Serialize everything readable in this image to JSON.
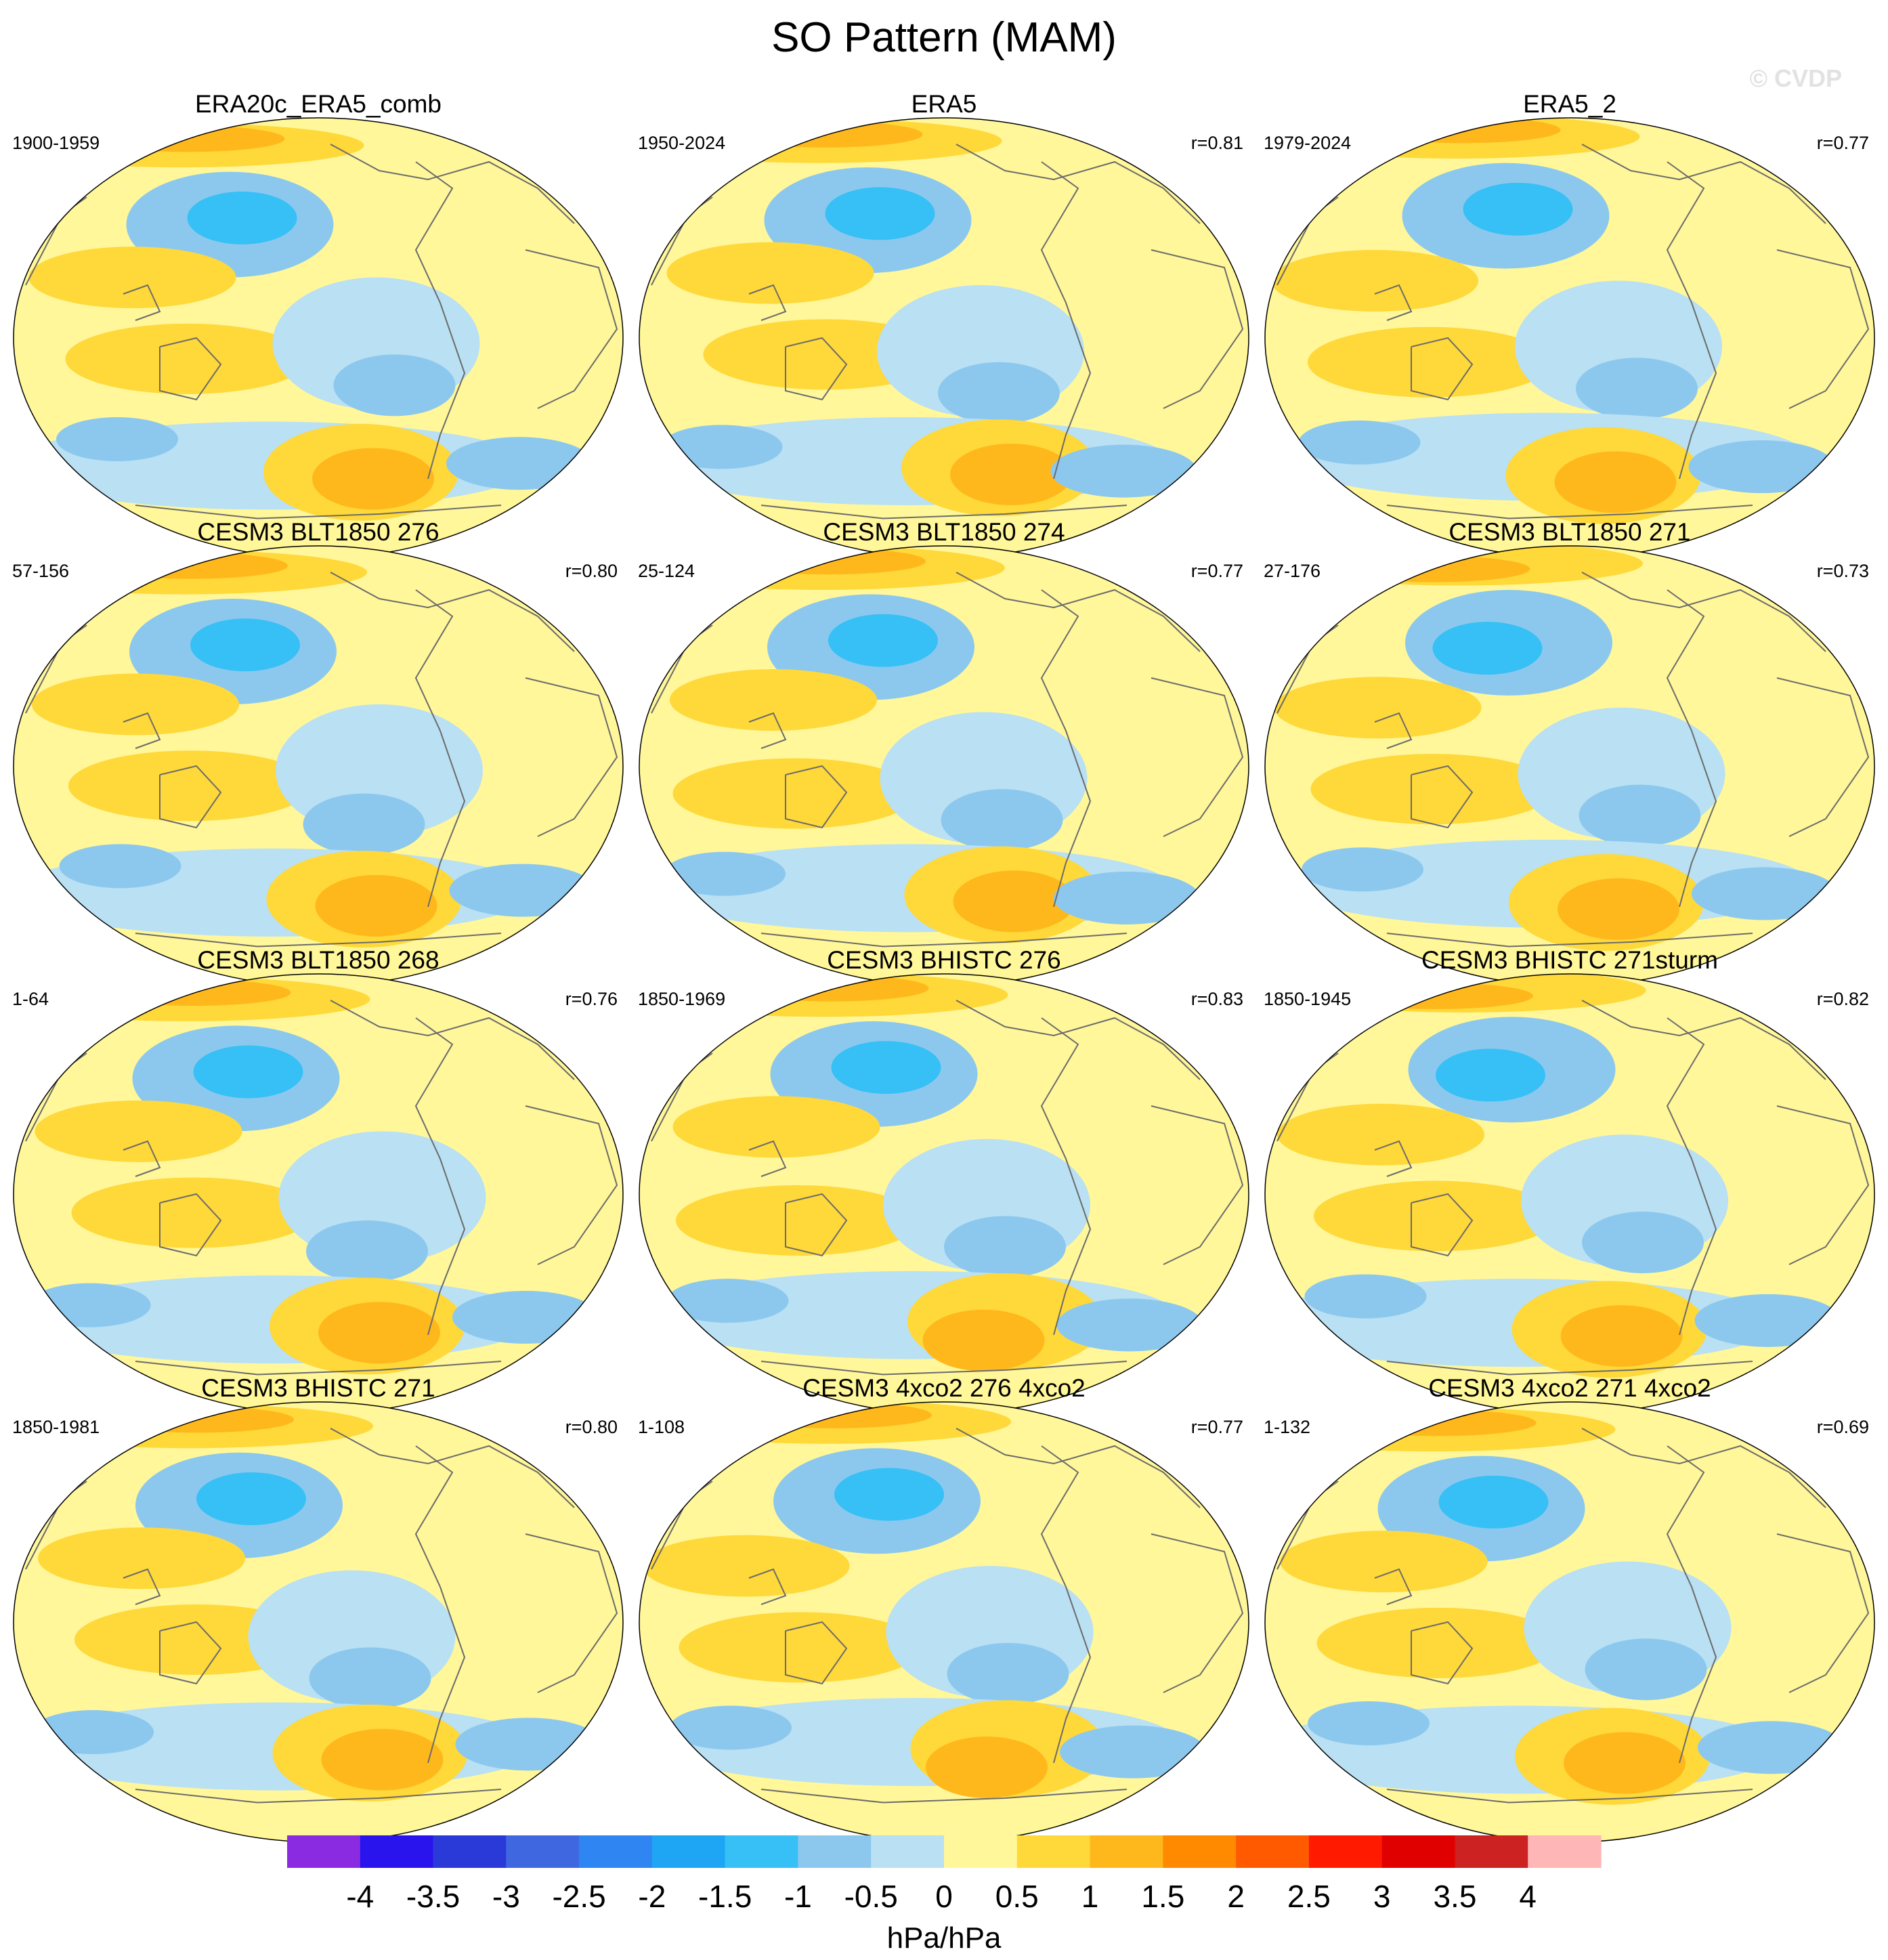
{
  "chart_data": {
    "type": "heatmap",
    "title": "SO Pattern (MAM)",
    "watermark": "© CVDP",
    "units": "hPa/hPa",
    "projection": "global map, Pacific-centered",
    "colorbar": {
      "ticks": [
        "-4",
        "-3.5",
        "-3",
        "-2.5",
        "-2",
        "-1.5",
        "-1",
        "-0.5",
        "0",
        "0.5",
        "1",
        "1.5",
        "2",
        "2.5",
        "3",
        "3.5",
        "4"
      ],
      "colors": [
        "#8a2be2",
        "#2a14ee",
        "#2a3ad9",
        "#3f68e0",
        "#2f86f2",
        "#1ea6f5",
        "#36c0f5",
        "#8cc8ee",
        "#b9e0f3",
        "#fff79a",
        "#ffd83a",
        "#ffb81c",
        "#ff8a00",
        "#ff5a00",
        "#ff1a00",
        "#e00000",
        "#cc2222",
        "#ffb6b6"
      ]
    },
    "panels": [
      {
        "title": "ERA20c_ERA5_comb",
        "period": "1900-1959",
        "r": ""
      },
      {
        "title": "ERA5",
        "period": "1950-2024",
        "r": "r=0.81"
      },
      {
        "title": "ERA5_2",
        "period": "1979-2024",
        "r": "r=0.77"
      },
      {
        "title": "CESM3 BLT1850 276",
        "period": "57-156",
        "r": "r=0.80"
      },
      {
        "title": "CESM3 BLT1850 274",
        "period": "25-124",
        "r": "r=0.77"
      },
      {
        "title": "CESM3 BLT1850 271",
        "period": "27-176",
        "r": "r=0.73"
      },
      {
        "title": "CESM3 BLT1850 268",
        "period": "1-64",
        "r": "r=0.76"
      },
      {
        "title": "CESM3 BHISTC 276",
        "period": "1850-1969",
        "r": "r=0.83"
      },
      {
        "title": "CESM3 BHISTC 271sturm",
        "period": "1850-1945",
        "r": "r=0.82"
      },
      {
        "title": "CESM3 BHISTC 271",
        "period": "1850-1981",
        "r": "r=0.80"
      },
      {
        "title": "CESM3 4xco2 276 4xco2",
        "period": "1-108",
        "r": "r=0.77"
      },
      {
        "title": "CESM3 4xco2 271 4xco2",
        "period": "1-132",
        "r": "r=0.69"
      }
    ]
  }
}
